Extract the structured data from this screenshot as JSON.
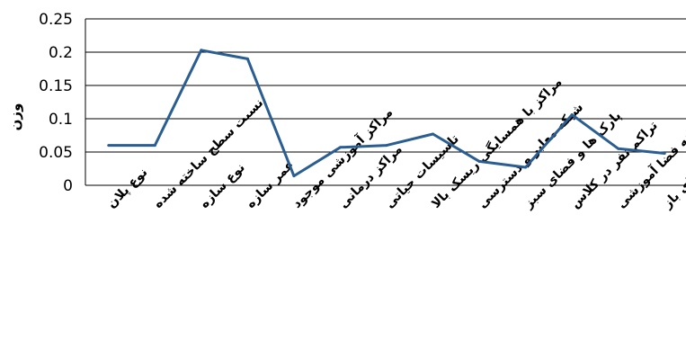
{
  "chart_data": {
    "type": "line",
    "title": "",
    "xlabel": "",
    "ylabel": "وزن",
    "ylim": [
      0,
      0.25
    ],
    "yticks": [
      "0",
      "0.05",
      "0.1",
      "0.15",
      "0.2",
      "0.25"
    ],
    "grid": true,
    "legend": "none",
    "categories": [
      "نوع پلان",
      "نسبت سطح ساخته شده",
      "نوع سازه",
      "عمر سازه",
      "مراکز آموزشی موجود",
      "مراکز درمانی",
      "تاسیسات حیاتی",
      "مراکز با همسایگی ریسک بالا",
      "شبکه معابر و دسترسی",
      "پارک ها و فضای سبز",
      "تراکم نفر در کلاس",
      "سرانه فضا آموزشی",
      "سرانه فضای باز"
    ],
    "series": [
      {
        "values": [
          0.06,
          0.06,
          0.203,
          0.19,
          0.014,
          0.057,
          0.06,
          0.077,
          0.036,
          0.027,
          0.106,
          0.055,
          0.048
        ],
        "color": "#2a5e93"
      }
    ]
  }
}
